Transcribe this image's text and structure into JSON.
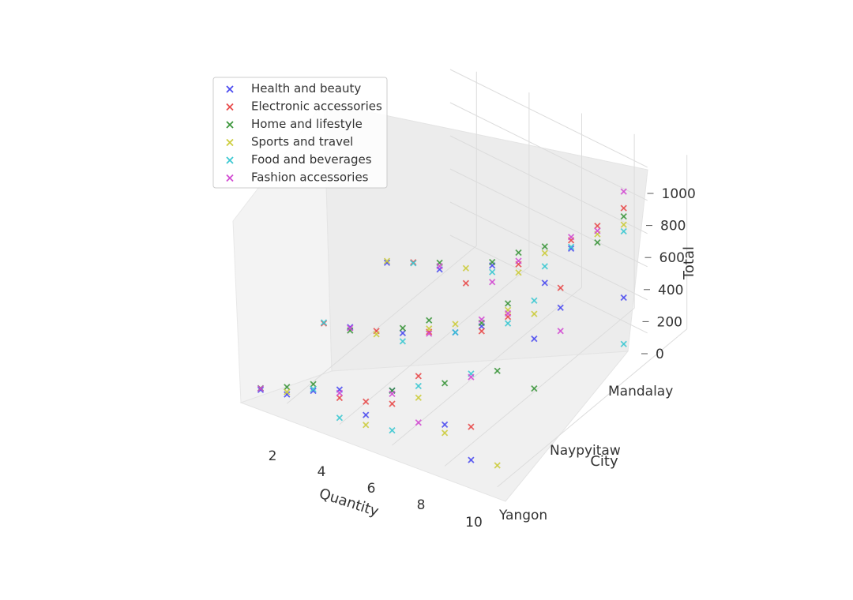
{
  "chart_data": {
    "type": "scatter",
    "projection": "3d",
    "marker": "x",
    "xlabel": "Quantity",
    "ylabel": "City",
    "zlabel": "Total",
    "x_ticks": [
      "2",
      "4",
      "6",
      "8",
      "10"
    ],
    "y_ticks": [
      "Yangon",
      "Naypyitaw",
      "Mandalay"
    ],
    "z_ticks": [
      "0",
      "200",
      "400",
      "600",
      "800",
      "1000"
    ],
    "xlim": [
      1,
      10
    ],
    "ylim": [
      "Yangon",
      "Mandalay"
    ],
    "zlim": [
      0,
      1050
    ],
    "grid": true,
    "legend_position": "upper-left",
    "series": [
      {
        "name": "Health and beauty",
        "color": "#4a4af0",
        "points": [
          {
            "x": 1,
            "city": "Yangon",
            "total": 20
          },
          {
            "x": 1,
            "city": "Mandalay",
            "total": 25
          },
          {
            "x": 2,
            "city": "Yangon",
            "total": 55
          },
          {
            "x": 2,
            "city": "Naypyitaw",
            "total": 80
          },
          {
            "x": 3,
            "city": "Yangon",
            "total": 140
          },
          {
            "x": 3,
            "city": "Mandalay",
            "total": 110
          },
          {
            "x": 4,
            "city": "Naypyitaw",
            "total": 170
          },
          {
            "x": 4,
            "city": "Yangon",
            "total": 210
          },
          {
            "x": 5,
            "city": "Mandalay",
            "total": 260
          },
          {
            "x": 5,
            "city": "Yangon",
            "total": 120
          },
          {
            "x": 6,
            "city": "Naypyitaw",
            "total": 300
          },
          {
            "x": 6,
            "city": "Yangon",
            "total": 330
          },
          {
            "x": 7,
            "city": "Mandalay",
            "total": 280
          },
          {
            "x": 7,
            "city": "Naypyitaw",
            "total": 400
          },
          {
            "x": 8,
            "city": "Yangon",
            "total": 250
          },
          {
            "x": 8,
            "city": "Mandalay",
            "total": 550
          },
          {
            "x": 9,
            "city": "Naypyitaw",
            "total": 450
          },
          {
            "x": 9,
            "city": "Yangon",
            "total": 100
          },
          {
            "x": 10,
            "city": "Mandalay",
            "total": 380
          },
          {
            "x": 10,
            "city": "Naypyitaw",
            "total": 700
          }
        ]
      },
      {
        "name": "Electronic accessories",
        "color": "#e84a4a",
        "points": [
          {
            "x": 1,
            "city": "Naypyitaw",
            "total": 40
          },
          {
            "x": 2,
            "city": "Mandalay",
            "total": 90
          },
          {
            "x": 3,
            "city": "Naypyitaw",
            "total": 120
          },
          {
            "x": 4,
            "city": "Yangon",
            "total": 160
          },
          {
            "x": 4,
            "city": "Mandalay",
            "total": 90
          },
          {
            "x": 5,
            "city": "Yangon",
            "total": 200
          },
          {
            "x": 5,
            "city": "Naypyitaw",
            "total": 240
          },
          {
            "x": 6,
            "city": "Mandalay",
            "total": 330
          },
          {
            "x": 6,
            "city": "Yangon",
            "total": 250
          },
          {
            "x": 7,
            "city": "Naypyitaw",
            "total": 370
          },
          {
            "x": 7,
            "city": "Yangon",
            "total": 480
          },
          {
            "x": 8,
            "city": "Mandalay",
            "total": 600
          },
          {
            "x": 8,
            "city": "Naypyitaw",
            "total": 520
          },
          {
            "x": 9,
            "city": "Mandalay",
            "total": 750
          },
          {
            "x": 9,
            "city": "Yangon",
            "total": 300
          },
          {
            "x": 10,
            "city": "Naypyitaw",
            "total": 820
          },
          {
            "x": 10,
            "city": "Mandalay",
            "total": 920
          }
        ]
      },
      {
        "name": "Home and lifestyle",
        "color": "#3c963c",
        "points": [
          {
            "x": 1,
            "city": "Yangon",
            "total": 30
          },
          {
            "x": 2,
            "city": "Naypyitaw",
            "total": 60
          },
          {
            "x": 2,
            "city": "Yangon",
            "total": 100
          },
          {
            "x": 3,
            "city": "Mandalay",
            "total": 150
          },
          {
            "x": 3,
            "city": "Yangon",
            "total": 180
          },
          {
            "x": 4,
            "city": "Naypyitaw",
            "total": 200
          },
          {
            "x": 5,
            "city": "Mandalay",
            "total": 280
          },
          {
            "x": 5,
            "city": "Naypyitaw",
            "total": 310
          },
          {
            "x": 6,
            "city": "Yangon",
            "total": 330
          },
          {
            "x": 6,
            "city": "Mandalay",
            "total": 400
          },
          {
            "x": 7,
            "city": "Naypyitaw",
            "total": 420
          },
          {
            "x": 7,
            "city": "Mandalay",
            "total": 500
          },
          {
            "x": 8,
            "city": "Yangon",
            "total": 500
          },
          {
            "x": 8,
            "city": "Naypyitaw",
            "total": 600
          },
          {
            "x": 9,
            "city": "Mandalay",
            "total": 650
          },
          {
            "x": 9,
            "city": "Naypyitaw",
            "total": 150
          },
          {
            "x": 10,
            "city": "Yangon",
            "total": 700
          },
          {
            "x": 10,
            "city": "Mandalay",
            "total": 870
          }
        ]
      },
      {
        "name": "Sports and travel",
        "color": "#cccc3c",
        "points": [
          {
            "x": 1,
            "city": "Mandalay",
            "total": 35
          },
          {
            "x": 2,
            "city": "Yangon",
            "total": 70
          },
          {
            "x": 3,
            "city": "Naypyitaw",
            "total": 100
          },
          {
            "x": 4,
            "city": "Mandalay",
            "total": 180
          },
          {
            "x": 5,
            "city": "Yangon",
            "total": 60
          },
          {
            "x": 5,
            "city": "Naypyitaw",
            "total": 260
          },
          {
            "x": 6,
            "city": "Mandalay",
            "total": 280
          },
          {
            "x": 6,
            "city": "Naypyitaw",
            "total": 350
          },
          {
            "x": 7,
            "city": "Yangon",
            "total": 350
          },
          {
            "x": 7,
            "city": "Mandalay",
            "total": 460
          },
          {
            "x": 8,
            "city": "Naypyitaw",
            "total": 560
          },
          {
            "x": 8,
            "city": "Yangon",
            "total": 200
          },
          {
            "x": 9,
            "city": "Mandalay",
            "total": 700
          },
          {
            "x": 9,
            "city": "Naypyitaw",
            "total": 600
          },
          {
            "x": 10,
            "city": "Yangon",
            "total": 130
          },
          {
            "x": 10,
            "city": "Mandalay",
            "total": 820
          }
        ]
      },
      {
        "name": "Food and beverages",
        "color": "#3cc8d2",
        "points": [
          {
            "x": 1,
            "city": "Naypyitaw",
            "total": 45
          },
          {
            "x": 2,
            "city": "Mandalay",
            "total": 85
          },
          {
            "x": 3,
            "city": "Yangon",
            "total": 150
          },
          {
            "x": 4,
            "city": "Naypyitaw",
            "total": 120
          },
          {
            "x": 4,
            "city": "Yangon",
            "total": 40
          },
          {
            "x": 5,
            "city": "Mandalay",
            "total": 220
          },
          {
            "x": 6,
            "city": "Yangon",
            "total": 90
          },
          {
            "x": 6,
            "city": "Naypyitaw",
            "total": 300
          },
          {
            "x": 7,
            "city": "Mandalay",
            "total": 380
          },
          {
            "x": 7,
            "city": "Yangon",
            "total": 420
          },
          {
            "x": 8,
            "city": "Naypyitaw",
            "total": 480
          },
          {
            "x": 8,
            "city": "Mandalay",
            "total": 560
          },
          {
            "x": 9,
            "city": "Yangon",
            "total": 620
          },
          {
            "x": 9,
            "city": "Naypyitaw",
            "total": 680
          },
          {
            "x": 10,
            "city": "Mandalay",
            "total": 100
          },
          {
            "x": 10,
            "city": "Mandalay",
            "total": 780
          }
        ]
      },
      {
        "name": "Fashion accessories",
        "color": "#d24ad2",
        "points": [
          {
            "x": 1,
            "city": "Yangon",
            "total": 28
          },
          {
            "x": 2,
            "city": "Naypyitaw",
            "total": 75
          },
          {
            "x": 3,
            "city": "Mandalay",
            "total": 130
          },
          {
            "x": 4,
            "city": "Yangon",
            "total": 190
          },
          {
            "x": 5,
            "city": "Naypyitaw",
            "total": 230
          },
          {
            "x": 5,
            "city": "Mandalay",
            "total": 160
          },
          {
            "x": 6,
            "city": "Yangon",
            "total": 310
          },
          {
            "x": 6,
            "city": "Mandalay",
            "total": 350
          },
          {
            "x": 7,
            "city": "Naypyitaw",
            "total": 440
          },
          {
            "x": 7,
            "city": "Yangon",
            "total": 200
          },
          {
            "x": 8,
            "city": "Mandalay",
            "total": 620
          },
          {
            "x": 8,
            "city": "Naypyitaw",
            "total": 540
          },
          {
            "x": 9,
            "city": "Yangon",
            "total": 600
          },
          {
            "x": 9,
            "city": "Mandalay",
            "total": 720
          },
          {
            "x": 10,
            "city": "Naypyitaw",
            "total": 560
          },
          {
            "x": 10,
            "city": "Mandalay",
            "total": 1020
          }
        ]
      }
    ]
  }
}
